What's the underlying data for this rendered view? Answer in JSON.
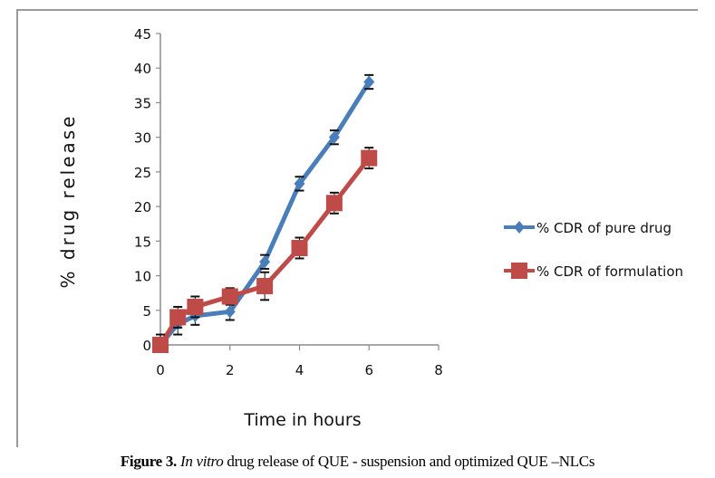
{
  "chart_data": {
    "type": "line",
    "title": "",
    "xlabel": "Time in hours",
    "ylabel": "% drug release",
    "xlim": [
      0,
      8
    ],
    "ylim": [
      0,
      45
    ],
    "xticks": [
      0,
      2,
      4,
      6,
      8
    ],
    "yticks": [
      0,
      5,
      10,
      15,
      20,
      25,
      30,
      35,
      40,
      45
    ],
    "grid": false,
    "legend_position": "right",
    "series": [
      {
        "name": "% CDR of pure drug",
        "color": "#4a7ebb",
        "marker": "diamond",
        "x": [
          0,
          0.5,
          1,
          2,
          3,
          4,
          5,
          6
        ],
        "y": [
          0,
          3,
          4.2,
          4.8,
          12,
          23.3,
          30,
          38
        ],
        "error": [
          1,
          1.5,
          1.3,
          1.2,
          1,
          1,
          1,
          1
        ]
      },
      {
        "name": "% CDR of formulation",
        "color": "#be4b48",
        "marker": "square",
        "x": [
          0,
          0.5,
          1,
          2,
          3,
          4,
          5,
          6
        ],
        "y": [
          0,
          4,
          5.5,
          7,
          8.5,
          14,
          20.5,
          27
        ],
        "error": [
          1.5,
          1.5,
          1.5,
          1.2,
          2,
          1.5,
          1.5,
          1.5
        ]
      }
    ]
  },
  "caption": {
    "label": "Figure 3.",
    "italic": "In vitro",
    "text": " drug release of QUE - suspension and optimized QUE –NLCs"
  }
}
